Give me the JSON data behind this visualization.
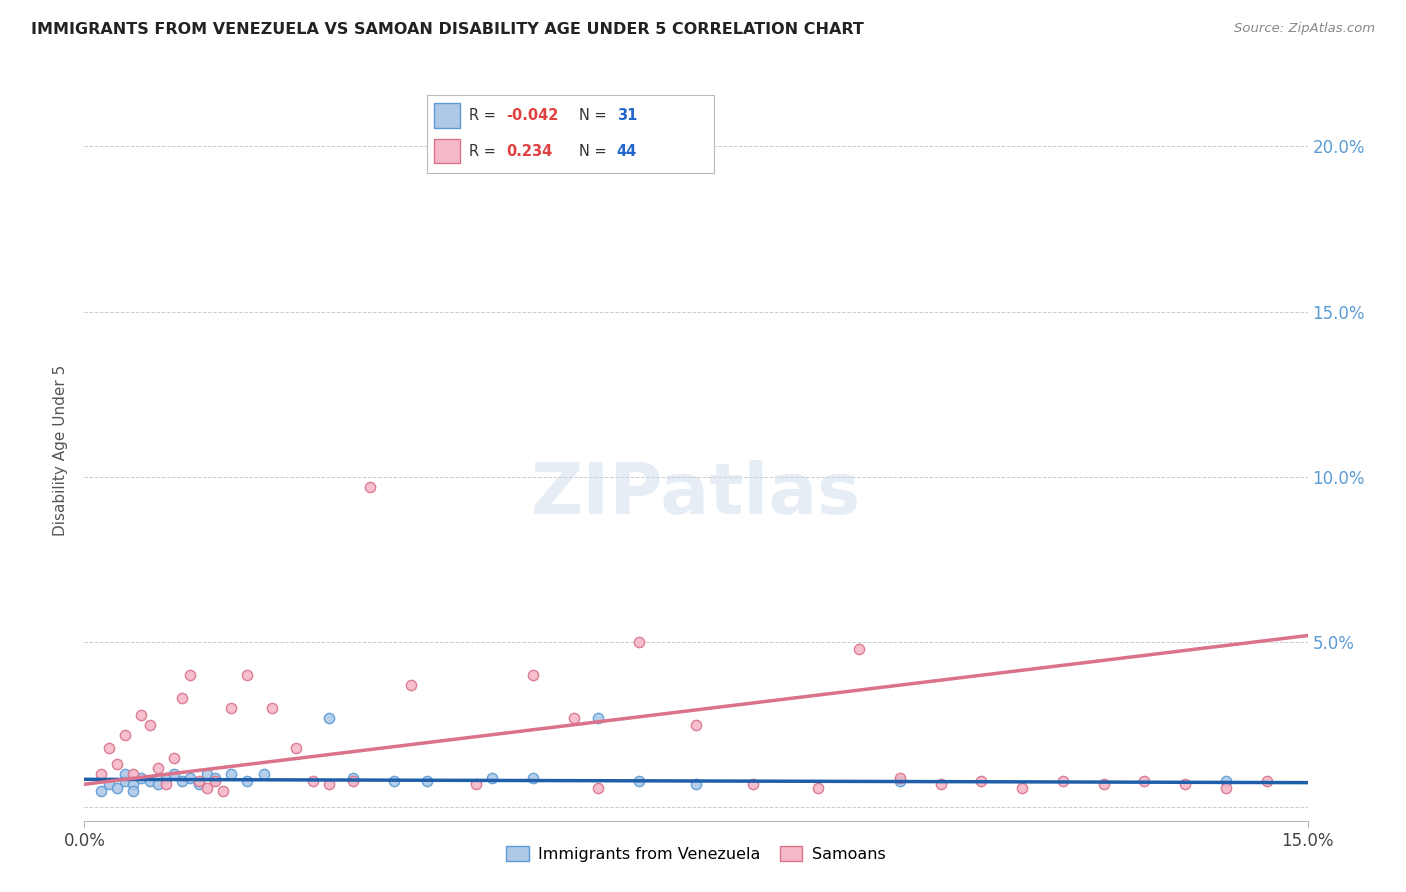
{
  "title": "IMMIGRANTS FROM VENEZUELA VS SAMOAN DISABILITY AGE UNDER 5 CORRELATION CHART",
  "source": "Source: ZipAtlas.com",
  "ylabel": "Disability Age Under 5",
  "legend_blue_R": "-0.042",
  "legend_blue_N": "31",
  "legend_pink_R": "0.234",
  "legend_pink_N": "44",
  "legend_blue_label": "Immigrants from Venezuela",
  "legend_pink_label": "Samoans",
  "watermark": "ZIPatlas",
  "xlim": [
    0.0,
    0.15
  ],
  "ylim": [
    -0.004,
    0.22
  ],
  "yticks": [
    0.0,
    0.05,
    0.1,
    0.15,
    0.2
  ],
  "xticks": [
    0.0,
    0.15
  ],
  "xtick_labels": [
    "0.0%",
    "15.0%"
  ],
  "blue_scatter_x": [
    0.002,
    0.003,
    0.004,
    0.005,
    0.005,
    0.006,
    0.006,
    0.007,
    0.008,
    0.009,
    0.01,
    0.011,
    0.012,
    0.013,
    0.014,
    0.015,
    0.016,
    0.018,
    0.02,
    0.022,
    0.03,
    0.033,
    0.038,
    0.042,
    0.05,
    0.055,
    0.063,
    0.068,
    0.075,
    0.1,
    0.14
  ],
  "blue_scatter_y": [
    0.005,
    0.007,
    0.006,
    0.008,
    0.01,
    0.007,
    0.005,
    0.009,
    0.008,
    0.007,
    0.009,
    0.01,
    0.008,
    0.009,
    0.007,
    0.01,
    0.009,
    0.01,
    0.008,
    0.01,
    0.027,
    0.009,
    0.008,
    0.008,
    0.009,
    0.009,
    0.027,
    0.008,
    0.007,
    0.008,
    0.008
  ],
  "pink_scatter_x": [
    0.002,
    0.003,
    0.004,
    0.005,
    0.006,
    0.007,
    0.008,
    0.009,
    0.01,
    0.011,
    0.012,
    0.013,
    0.014,
    0.015,
    0.016,
    0.017,
    0.018,
    0.02,
    0.023,
    0.026,
    0.028,
    0.03,
    0.033,
    0.035,
    0.04,
    0.048,
    0.055,
    0.06,
    0.063,
    0.068,
    0.075,
    0.082,
    0.09,
    0.095,
    0.1,
    0.105,
    0.11,
    0.115,
    0.12,
    0.125,
    0.13,
    0.135,
    0.14,
    0.145
  ],
  "pink_scatter_y": [
    0.01,
    0.018,
    0.013,
    0.022,
    0.01,
    0.028,
    0.025,
    0.012,
    0.007,
    0.015,
    0.033,
    0.04,
    0.008,
    0.006,
    0.008,
    0.005,
    0.03,
    0.04,
    0.03,
    0.018,
    0.008,
    0.007,
    0.008,
    0.097,
    0.037,
    0.007,
    0.04,
    0.027,
    0.006,
    0.05,
    0.025,
    0.007,
    0.006,
    0.048,
    0.009,
    0.007,
    0.008,
    0.006,
    0.008,
    0.007,
    0.008,
    0.007,
    0.006,
    0.008
  ],
  "blue_line_x": [
    0.0,
    0.15
  ],
  "blue_line_y_start": 0.0085,
  "blue_line_y_end": 0.0075,
  "pink_line_x": [
    0.0,
    0.15
  ],
  "pink_line_y_start": 0.007,
  "pink_line_y_end": 0.052,
  "blue_color": "#aec9e8",
  "blue_edge_color": "#5b9bd5",
  "pink_color": "#f4b8c8",
  "pink_edge_color": "#d9728a",
  "blue_line_color": "#1f5faa",
  "pink_line_color": "#d9728a",
  "background_color": "#ffffff",
  "grid_color": "#cccccc",
  "title_color": "#222222",
  "right_axis_color": "#5b9bd5"
}
